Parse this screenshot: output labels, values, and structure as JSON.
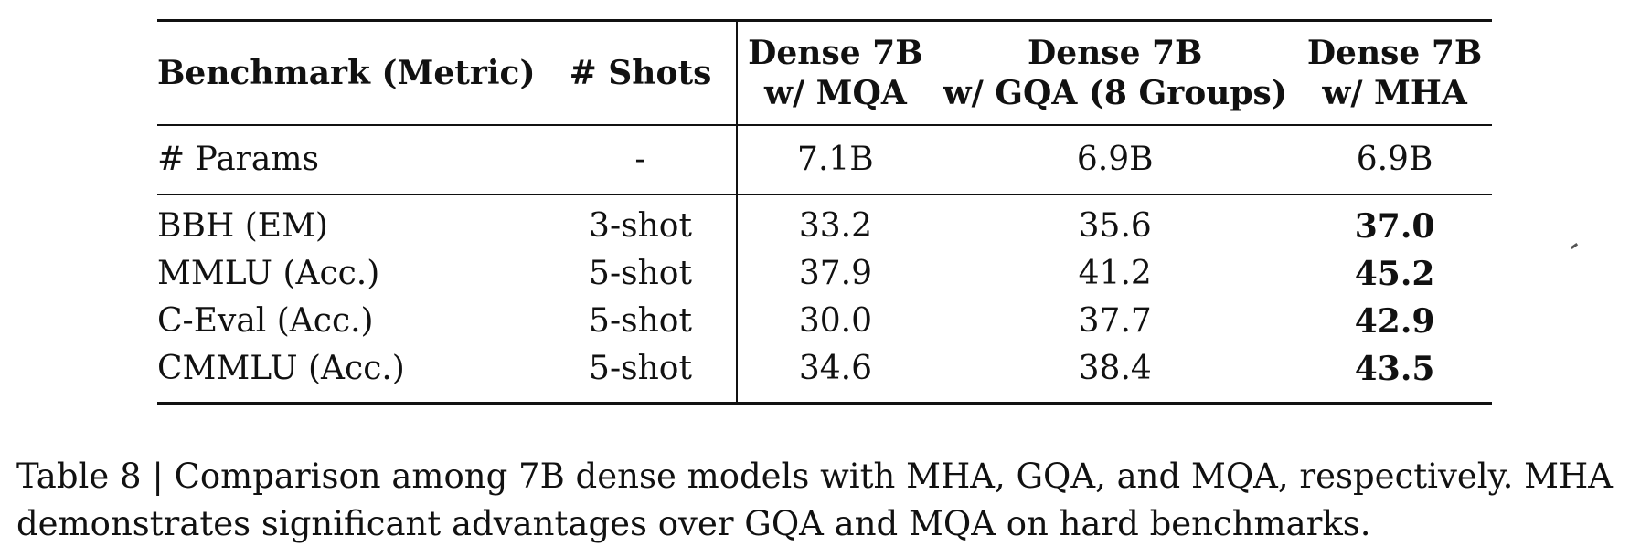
{
  "table": {
    "headers": [
      "Benchmark (Metric)",
      "# Shots",
      "Dense 7B\nw/ MQA",
      "Dense 7B\nw/ GQA (8 Groups)",
      "Dense 7B\nw/ MHA"
    ],
    "params_row": [
      "# Params",
      "-",
      "7.1B",
      "6.9B",
      "6.9B"
    ],
    "rows": [
      {
        "benchmark": "BBH (EM)",
        "shots": "3-shot",
        "mqa": "33.2",
        "gqa": "35.6",
        "mha": "37.0"
      },
      {
        "benchmark": "MMLU (Acc.)",
        "shots": "5-shot",
        "mqa": "37.9",
        "gqa": "41.2",
        "mha": "45.2"
      },
      {
        "benchmark": "C-Eval (Acc.)",
        "shots": "5-shot",
        "mqa": "30.0",
        "gqa": "37.7",
        "mha": "42.9"
      },
      {
        "benchmark": "CMMLU (Acc.)",
        "shots": "5-shot",
        "mqa": "34.6",
        "gqa": "38.4",
        "mha": "43.5"
      }
    ]
  },
  "caption": "Table 8 | Comparison among 7B dense models with MHA, GQA, and MQA, respectively. MHA demonstrates significant advantages over GQA and MQA on hard benchmarks."
}
